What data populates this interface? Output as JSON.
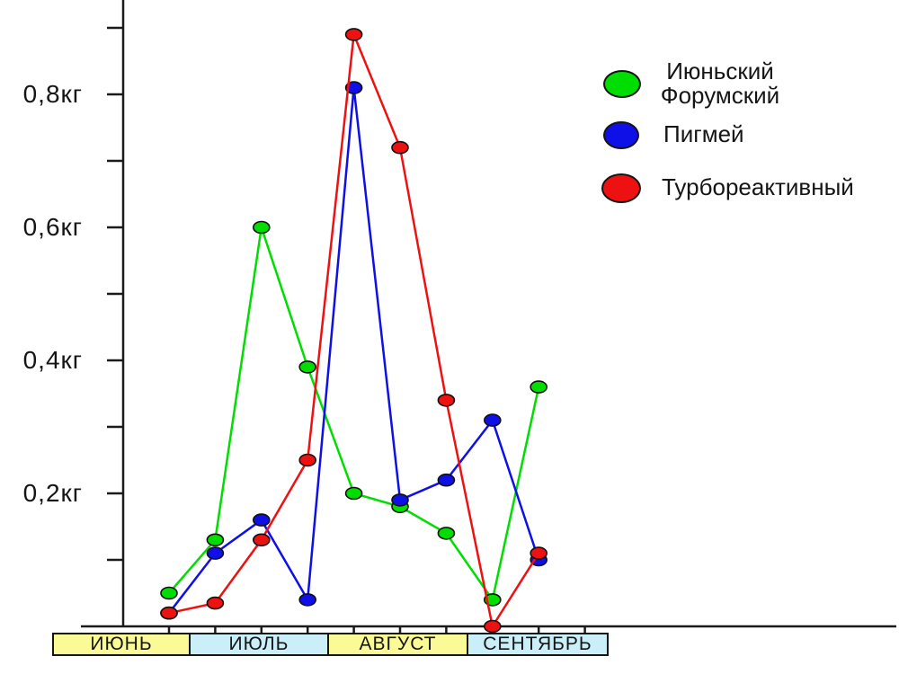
{
  "chart_data": {
    "type": "line",
    "title": "",
    "y_unit": "кг",
    "ylim": [
      0,
      0.95
    ],
    "y_tick_step": 0.1,
    "grid": false,
    "legend_position": "top-right",
    "y_axis_labels": [
      {
        "value": 0.8,
        "label": "0,8кг"
      },
      {
        "value": 0.6,
        "label": "0,6кг"
      },
      {
        "value": 0.4,
        "label": "0,4кг"
      },
      {
        "value": 0.2,
        "label": "0,2кг"
      }
    ],
    "x_tick_count": 10,
    "x_points_per_series": 9,
    "month_band": [
      {
        "label": "ИЮНЬ",
        "fill": "#FAFA96"
      },
      {
        "label": "ИЮЛЬ",
        "fill": "#CBEFF8"
      },
      {
        "label": "АВГУСТ",
        "fill": "#FAFA96"
      },
      {
        "label": "СЕНТЯБРЬ",
        "fill": "#CBEFF8"
      }
    ],
    "series": [
      {
        "name": "Июньский Форумский",
        "legend_lines": [
          "Июньский",
          "Форумский"
        ],
        "color": "#00DD00",
        "values": [
          0.05,
          0.13,
          0.6,
          0.39,
          0.2,
          0.18,
          0.14,
          0.04,
          0.36
        ]
      },
      {
        "name": "Пигмей",
        "legend_lines": [
          "Пигмей"
        ],
        "color": "#0F0FE8",
        "values": [
          0.02,
          0.11,
          0.16,
          0.04,
          0.81,
          0.19,
          0.22,
          0.31,
          0.1
        ]
      },
      {
        "name": "Турбореактивный",
        "legend_lines": [
          "Турбореактивный"
        ],
        "color": "#EE1111",
        "values": [
          0.02,
          0.035,
          0.13,
          0.25,
          0.89,
          0.72,
          0.34,
          0.0,
          0.11
        ]
      }
    ]
  }
}
